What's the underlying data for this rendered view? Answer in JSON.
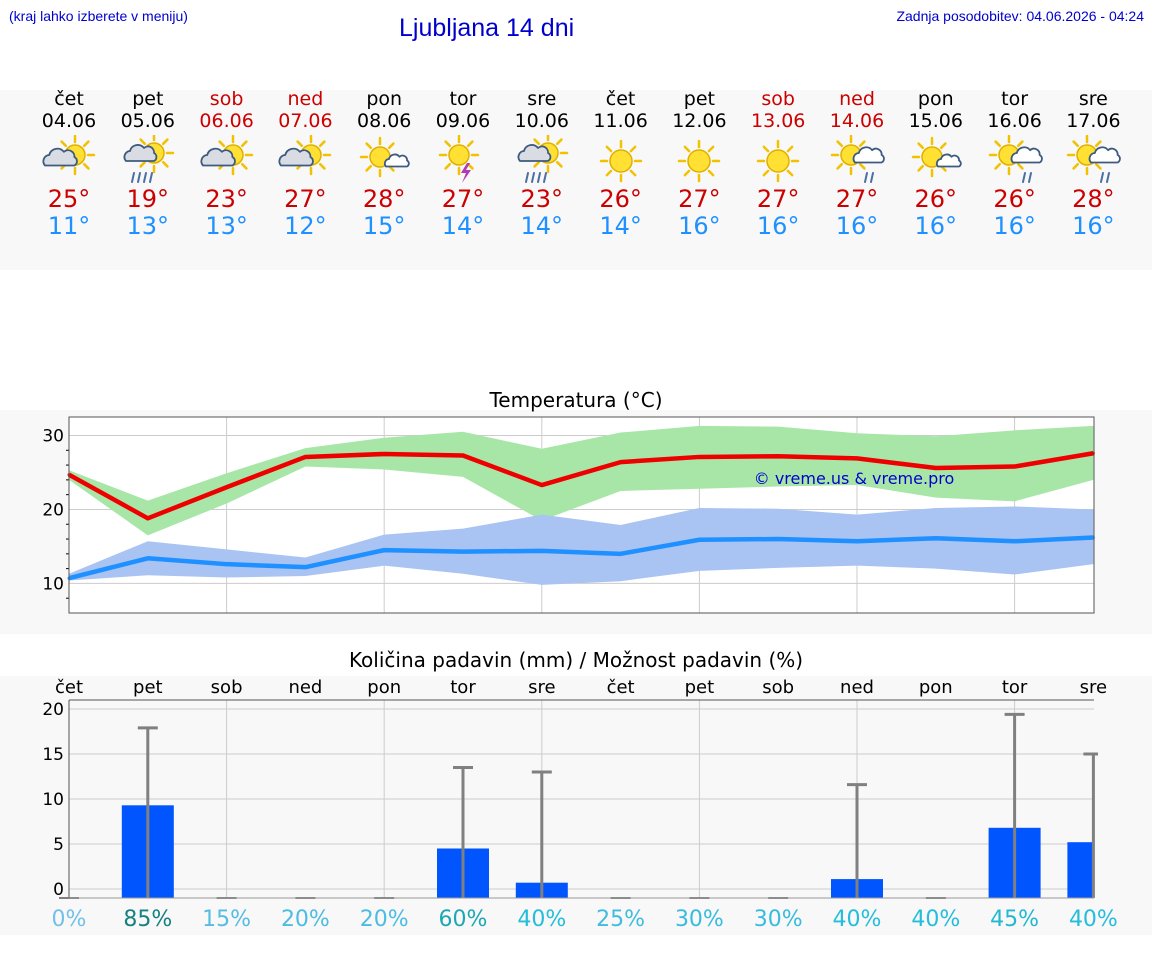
{
  "header": {
    "menu_hint": "(kraj lahko izberete v meniju)",
    "title": "Ljubljana 14 dni",
    "updated": "Zadnja posodobitev: 04.06.2026 - 04:24"
  },
  "days": [
    {
      "name": "čet",
      "date": "04.06",
      "weekend": false,
      "icon": "partly-cloudy-icon",
      "tmax": "25°",
      "tmin": "11°"
    },
    {
      "name": "pet",
      "date": "05.06",
      "weekend": false,
      "icon": "sun-cloud-rain-icon",
      "tmax": "19°",
      "tmin": "13°"
    },
    {
      "name": "sob",
      "date": "06.06",
      "weekend": true,
      "icon": "partly-cloudy-icon",
      "tmax": "23°",
      "tmin": "13°"
    },
    {
      "name": "ned",
      "date": "07.06",
      "weekend": true,
      "icon": "partly-cloudy-icon",
      "tmax": "27°",
      "tmin": "12°"
    },
    {
      "name": "pon",
      "date": "08.06",
      "weekend": false,
      "icon": "sun-small-cloud-icon",
      "tmax": "28°",
      "tmin": "15°"
    },
    {
      "name": "tor",
      "date": "09.06",
      "weekend": false,
      "icon": "sun-thunder-icon",
      "tmax": "27°",
      "tmin": "14°"
    },
    {
      "name": "sre",
      "date": "10.06",
      "weekend": false,
      "icon": "sun-cloud-rain-icon",
      "tmax": "23°",
      "tmin": "14°"
    },
    {
      "name": "čet",
      "date": "11.06",
      "weekend": false,
      "icon": "sun-icon",
      "tmax": "26°",
      "tmin": "14°"
    },
    {
      "name": "pet",
      "date": "12.06",
      "weekend": false,
      "icon": "sun-icon",
      "tmax": "27°",
      "tmin": "16°"
    },
    {
      "name": "sob",
      "date": "13.06",
      "weekend": true,
      "icon": "sun-icon",
      "tmax": "27°",
      "tmin": "16°"
    },
    {
      "name": "ned",
      "date": "14.06",
      "weekend": true,
      "icon": "sun-cloud-showers-icon",
      "tmax": "27°",
      "tmin": "16°"
    },
    {
      "name": "pon",
      "date": "15.06",
      "weekend": false,
      "icon": "sun-small-cloud-icon",
      "tmax": "26°",
      "tmin": "16°"
    },
    {
      "name": "tor",
      "date": "16.06",
      "weekend": false,
      "icon": "sun-cloud-showers-icon",
      "tmax": "26°",
      "tmin": "16°"
    },
    {
      "name": "sre",
      "date": "17.06",
      "weekend": false,
      "icon": "sun-cloud-showers-icon",
      "tmax": "28°",
      "tmin": "16°"
    }
  ],
  "colors": {
    "max_line": "#ee0000",
    "max_band": "#a8e6a8",
    "min_line": "#1e90ff",
    "min_band": "#a9c3f2",
    "precip_bar": "#0055ff",
    "error_bar": "#808080",
    "weekend_text": "#cc0000",
    "tmin_text": "#1e90ff"
  },
  "chart_data": [
    {
      "type": "line",
      "title": "Temperatura (°C)",
      "watermark": "© vreme.us & vreme.pro",
      "x": [
        "04.06",
        "05.06",
        "06.06",
        "07.06",
        "08.06",
        "09.06",
        "10.06",
        "11.06",
        "12.06",
        "13.06",
        "14.06",
        "15.06",
        "16.06",
        "17.06"
      ],
      "ylim": [
        6,
        32.5
      ],
      "yticks": [
        10,
        20,
        30
      ],
      "grid": true,
      "series": [
        {
          "values": [
            24.7,
            18.8,
            23.0,
            27.1,
            27.5,
            27.3,
            23.3,
            26.4,
            27.1,
            27.2,
            26.9,
            25.6,
            25.8,
            27.6
          ],
          "band_low": [
            24.0,
            16.5,
            20.8,
            25.8,
            25.4,
            24.4,
            18.5,
            22.5,
            22.8,
            23.1,
            23.3,
            21.6,
            21.1,
            24.0
          ],
          "band_high": [
            25.3,
            21.2,
            24.9,
            28.3,
            29.7,
            30.5,
            28.2,
            30.4,
            31.3,
            31.2,
            30.3,
            29.9,
            30.7,
            31.3
          ]
        },
        {
          "values": [
            10.7,
            13.4,
            12.6,
            12.2,
            14.5,
            14.3,
            14.4,
            14.0,
            15.9,
            16.0,
            15.7,
            16.1,
            15.7,
            16.2
          ],
          "band_low": [
            10.4,
            11.1,
            10.8,
            11.0,
            12.4,
            11.3,
            9.8,
            10.3,
            11.7,
            12.1,
            12.4,
            12.0,
            11.2,
            12.6
          ],
          "band_high": [
            11.3,
            15.7,
            14.6,
            13.5,
            16.6,
            17.4,
            19.3,
            17.9,
            20.2,
            20.1,
            19.3,
            20.2,
            20.4,
            20.0
          ]
        }
      ]
    },
    {
      "type": "bar",
      "title": "Količina padavin (mm) / Možnost padavin (%)",
      "categories": [
        "čet",
        "pet",
        "sob",
        "ned",
        "pon",
        "tor",
        "sre",
        "čet",
        "pet",
        "sob",
        "ned",
        "pon",
        "tor",
        "sre"
      ],
      "values": [
        0,
        9.3,
        0,
        0,
        0,
        4.5,
        0.7,
        0,
        0,
        0,
        1.1,
        0,
        6.8,
        5.2
      ],
      "error_high": [
        0,
        17.9,
        0,
        0,
        0,
        13.5,
        13.0,
        0,
        0,
        0,
        11.6,
        0,
        19.4,
        15.0
      ],
      "probability": [
        "0%",
        "85%",
        "15%",
        "20%",
        "20%",
        "60%",
        "40%",
        "25%",
        "30%",
        "30%",
        "40%",
        "40%",
        "45%",
        "40%"
      ],
      "probability_values": [
        0,
        85,
        15,
        20,
        20,
        60,
        40,
        25,
        30,
        30,
        40,
        40,
        45,
        40
      ],
      "ylim": [
        -1,
        21
      ],
      "yticks": [
        0,
        5,
        10,
        15,
        20
      ],
      "grid": true
    }
  ]
}
